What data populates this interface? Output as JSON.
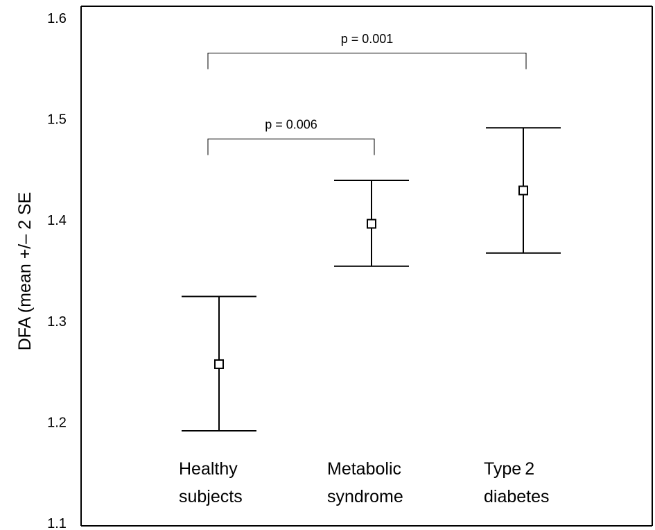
{
  "chart_data": {
    "type": "errorbar",
    "title": "",
    "xlabel": "",
    "ylabel": "DFA (mean +/– 2 SE",
    "ylim": [
      1.1,
      1.6
    ],
    "yticks": [
      "1.1",
      "1.2",
      "1.3",
      "1.4",
      "1.5",
      "1.6"
    ],
    "ytick_values": [
      1.1,
      1.2,
      1.3,
      1.4,
      1.5,
      1.6
    ],
    "grid": false,
    "categories": [
      {
        "line1": "Healthy",
        "line2": "subjects"
      },
      {
        "line1": "Metabolic",
        "line2": "syndrome"
      },
      {
        "line1": "Type 2",
        "line2": "diabetes"
      }
    ],
    "series": [
      {
        "mean": [
          1.258,
          1.397,
          1.43
        ],
        "lower": [
          1.192,
          1.355,
          1.368
        ],
        "upper": [
          1.325,
          1.44,
          1.492
        ]
      }
    ],
    "annotations": [
      {
        "text": "p = 0.006",
        "from": 0,
        "to": 1,
        "y": 1.481,
        "tick_bottom": 1.465,
        "label_y": 1.491
      },
      {
        "text": "p = 0.001",
        "from": 0,
        "to": 2,
        "y": 1.566,
        "tick_bottom": 1.55,
        "label_y": 1.576
      }
    ],
    "colors": {
      "line": "#000000",
      "marker_fill": "#ffffff"
    }
  }
}
